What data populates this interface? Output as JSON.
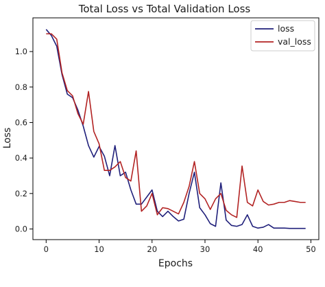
{
  "chart_data": {
    "type": "line",
    "title": "Total Loss vs Total Validation Loss",
    "xlabel": "Epochs",
    "ylabel": "Loss",
    "xlim": [
      -2.5,
      51.5
    ],
    "ylim": [
      -0.06,
      1.19
    ],
    "xticks": [
      0,
      10,
      20,
      30,
      40,
      50
    ],
    "yticks": [
      0.0,
      0.2,
      0.4,
      0.6,
      0.8,
      1.0
    ],
    "ytick_labels": [
      "0.0",
      "0.2",
      "0.4",
      "0.6",
      "0.8",
      "1.0"
    ],
    "grid": false,
    "legend_position": "top-right",
    "x": [
      0,
      1,
      2,
      3,
      4,
      5,
      6,
      7,
      8,
      9,
      10,
      11,
      12,
      13,
      14,
      15,
      16,
      17,
      18,
      19,
      20,
      21,
      22,
      23,
      24,
      25,
      26,
      27,
      28,
      29,
      30,
      31,
      32,
      33,
      34,
      35,
      36,
      37,
      38,
      39,
      40,
      41,
      42,
      43,
      44,
      45,
      46,
      47,
      48,
      49
    ],
    "series": [
      {
        "name": "loss",
        "color": "#1f1f7a",
        "values": [
          1.125,
          1.09,
          1.03,
          0.87,
          0.76,
          0.74,
          0.67,
          0.58,
          0.47,
          0.405,
          0.465,
          0.41,
          0.3,
          0.47,
          0.3,
          0.32,
          0.22,
          0.14,
          0.14,
          0.18,
          0.22,
          0.1,
          0.07,
          0.1,
          0.07,
          0.045,
          0.055,
          0.2,
          0.32,
          0.12,
          0.08,
          0.03,
          0.015,
          0.26,
          0.05,
          0.02,
          0.015,
          0.025,
          0.08,
          0.015,
          0.005,
          0.01,
          0.025,
          0.005,
          0.005,
          0.005,
          0.003,
          0.003,
          0.003,
          0.003
        ]
      },
      {
        "name": "val_loss",
        "color": "#b22222",
        "values": [
          1.1,
          1.1,
          1.07,
          0.88,
          0.78,
          0.75,
          0.65,
          0.59,
          0.775,
          0.55,
          0.48,
          0.33,
          0.33,
          0.35,
          0.38,
          0.29,
          0.27,
          0.44,
          0.1,
          0.13,
          0.2,
          0.08,
          0.12,
          0.115,
          0.1,
          0.085,
          0.15,
          0.24,
          0.38,
          0.2,
          0.17,
          0.11,
          0.17,
          0.2,
          0.105,
          0.08,
          0.065,
          0.355,
          0.15,
          0.13,
          0.22,
          0.155,
          0.135,
          0.14,
          0.15,
          0.15,
          0.16,
          0.155,
          0.15,
          0.15
        ]
      }
    ]
  }
}
